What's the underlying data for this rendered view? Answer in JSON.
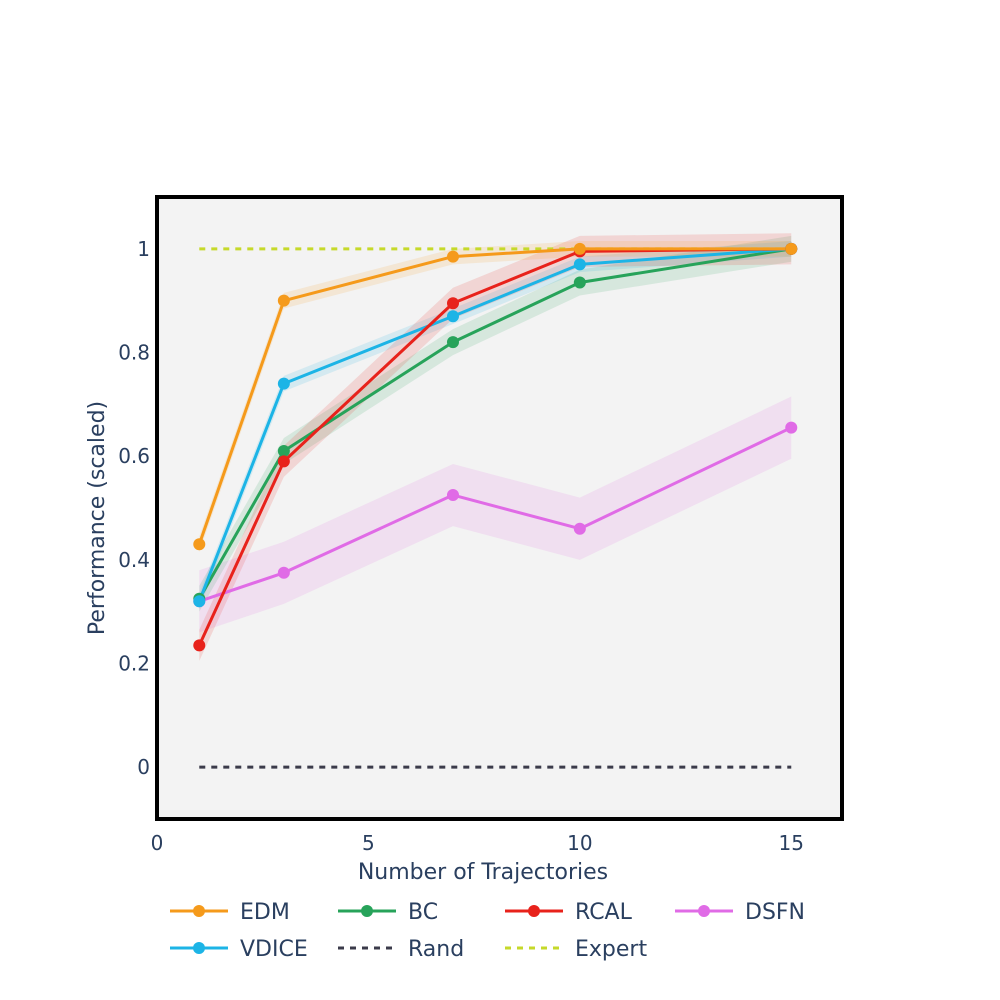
{
  "chart_data": {
    "type": "line",
    "title": "",
    "xlabel": "Number of Trajectories",
    "ylabel": "Performance (scaled)",
    "xlim": [
      0,
      16.2
    ],
    "ylim": [
      -0.1,
      1.1
    ],
    "xticks": [
      0,
      5,
      10,
      15
    ],
    "xtick_labels": [
      "0",
      "5",
      "10",
      "15"
    ],
    "yticks": [
      0,
      0.2,
      0.4,
      0.6,
      0.8,
      1
    ],
    "ytick_labels": [
      "0",
      "0.2",
      "0.4",
      "0.6",
      "0.8",
      "1"
    ],
    "x": [
      1,
      3,
      7,
      10,
      15
    ],
    "series": [
      {
        "name": "EDM",
        "color": "#f59a1b",
        "style": "solid",
        "markers": true,
        "values": [
          0.43,
          0.9,
          0.985,
          1.0,
          1.0
        ],
        "band": 0.015
      },
      {
        "name": "BC",
        "color": "#27a35a",
        "style": "solid",
        "markers": true,
        "values": [
          0.325,
          0.61,
          0.82,
          0.935,
          1.0
        ],
        "band": 0.025
      },
      {
        "name": "RCAL",
        "color": "#e8221b",
        "style": "solid",
        "markers": true,
        "values": [
          0.235,
          0.59,
          0.895,
          0.995,
          1.0
        ],
        "band": 0.03
      },
      {
        "name": "DSFN",
        "color": "#e06be6",
        "style": "solid",
        "markers": true,
        "values": [
          0.32,
          0.375,
          0.525,
          0.46,
          0.655
        ],
        "band": 0.06
      },
      {
        "name": "VDICE",
        "color": "#1cb4e6",
        "style": "solid",
        "markers": true,
        "values": [
          0.32,
          0.74,
          0.87,
          0.97,
          1.0
        ],
        "band": 0.015
      },
      {
        "name": "Rand",
        "color": "#3b3b4a",
        "style": "dotted",
        "markers": false,
        "values": [
          0,
          0,
          0,
          0,
          0
        ],
        "band": 0
      },
      {
        "name": "Expert",
        "color": "#c6d92a",
        "style": "dotted",
        "markers": false,
        "values": [
          1,
          1,
          1,
          1,
          1
        ],
        "band": 0
      }
    ],
    "legend_order": [
      "EDM",
      "BC",
      "RCAL",
      "DSFN",
      "VDICE",
      "Rand",
      "Expert"
    ],
    "legend_position": "bottom",
    "plot_background": "#f3f3f3",
    "frame_color": "#000000"
  }
}
